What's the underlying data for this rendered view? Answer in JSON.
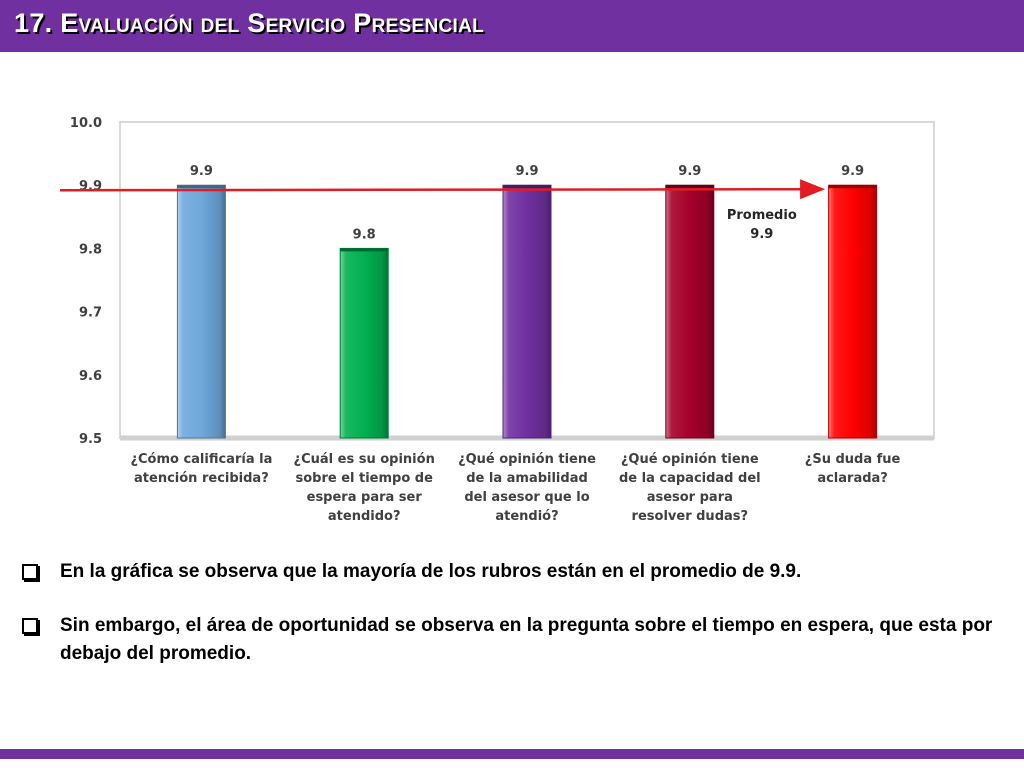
{
  "header": {
    "title": "17. Evaluación del Servicio Presencial"
  },
  "colors": {
    "header_bg": "#7030a0",
    "average_line": "#e31b23"
  },
  "chart_data": {
    "type": "bar",
    "title": "",
    "xlabel": "",
    "ylabel": "",
    "ylim": [
      9.5,
      10.0
    ],
    "yticks": [
      "10.0",
      "9.9",
      "9.8",
      "9.7",
      "9.6",
      "9.5"
    ],
    "grid": false,
    "categories": [
      [
        "¿Cómo calificaría la",
        "atención recibida?"
      ],
      [
        "¿Cuál es su opinión",
        "sobre el tiempo de",
        "espera para ser",
        "atendido?"
      ],
      [
        "¿Qué opinión tiene",
        "de la amabilidad",
        "del asesor que lo",
        "atendió?"
      ],
      [
        "¿Qué opinión tiene",
        "de la capacidad del",
        "asesor para",
        "resolver dudas?"
      ],
      [
        "¿Su duda fue",
        "aclarada?"
      ]
    ],
    "values": [
      9.9,
      9.8,
      9.9,
      9.9,
      9.9
    ],
    "value_labels": [
      "9.9",
      "9.8",
      "9.9",
      "9.9",
      "9.9"
    ],
    "bar_colors": [
      "#6fa8dc",
      "#00b050",
      "#7030a0",
      "#a5002a",
      "#ff0000"
    ],
    "average": {
      "value": 9.9,
      "label_lines": [
        "Promedio",
        "9.9"
      ]
    }
  },
  "bullets": [
    "En la gráfica se observa que  la mayoría de los rubros están en el promedio de 9.9.",
    "Sin embargo, el área de oportunidad se observa en la pregunta sobre el tiempo en espera, que esta por debajo del promedio."
  ]
}
